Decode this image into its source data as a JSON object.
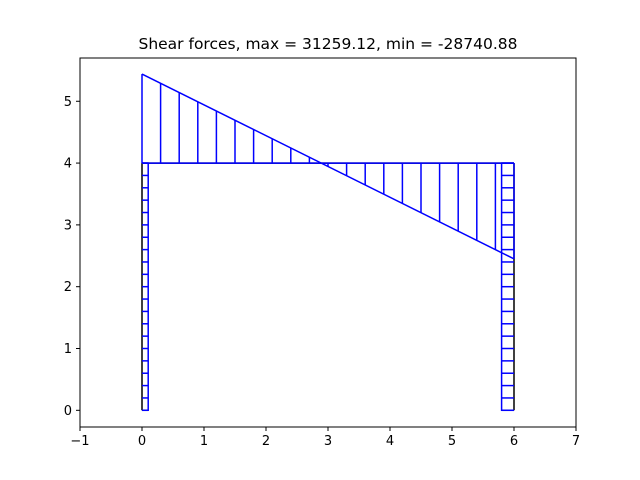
{
  "chart_data": {
    "type": "line",
    "title": "Shear forces, max = 31259.12, min = -28740.88",
    "xlabel": "",
    "ylabel": "",
    "xlim": [
      -1,
      7
    ],
    "ylim": [
      -0.27,
      5.7
    ],
    "x_ticks": [
      -1,
      0,
      1,
      2,
      3,
      4,
      5,
      6,
      7
    ],
    "y_ticks": [
      0,
      1,
      2,
      3,
      4,
      5
    ],
    "grid": false,
    "legend": "none",
    "frame": {
      "color": "#000000",
      "members": [
        {
          "name": "left-column",
          "points": [
            [
              0,
              0
            ],
            [
              0,
              4
            ]
          ]
        },
        {
          "name": "beam",
          "points": [
            [
              0,
              4
            ],
            [
              6,
              4
            ]
          ]
        },
        {
          "name": "right-column",
          "points": [
            [
              6,
              0
            ],
            [
              6,
              4
            ]
          ]
        }
      ]
    },
    "shear_diagram": {
      "color": "#0000ff",
      "left_column": {
        "offset": 0.1,
        "hatch_y": [
          0,
          0.2,
          0.4,
          0.6,
          0.8,
          1.0,
          1.2,
          1.4,
          1.6,
          1.8,
          2.0,
          2.2,
          2.4,
          2.6,
          2.8,
          3.0,
          3.2,
          3.4,
          3.6,
          3.8,
          4.0
        ]
      },
      "beam": {
        "baseline": 4,
        "start": [
          0,
          5.44
        ],
        "end": [
          6,
          2.45
        ],
        "hatch_x": [
          0,
          0.3,
          0.6,
          0.9,
          1.2,
          1.5,
          1.8,
          2.1,
          2.4,
          2.7,
          3.0,
          3.3,
          3.6,
          3.9,
          4.2,
          4.5,
          4.8,
          5.1,
          5.4,
          5.7,
          6.0
        ]
      },
      "right_column": {
        "offset": -0.2,
        "hatch_y": [
          0,
          0.2,
          0.4,
          0.6,
          0.8,
          1.0,
          1.2,
          1.4,
          1.6,
          1.8,
          2.0,
          2.2,
          2.4,
          2.6,
          2.8,
          3.0,
          3.2,
          3.4,
          3.6,
          3.8,
          4.0
        ]
      }
    }
  }
}
